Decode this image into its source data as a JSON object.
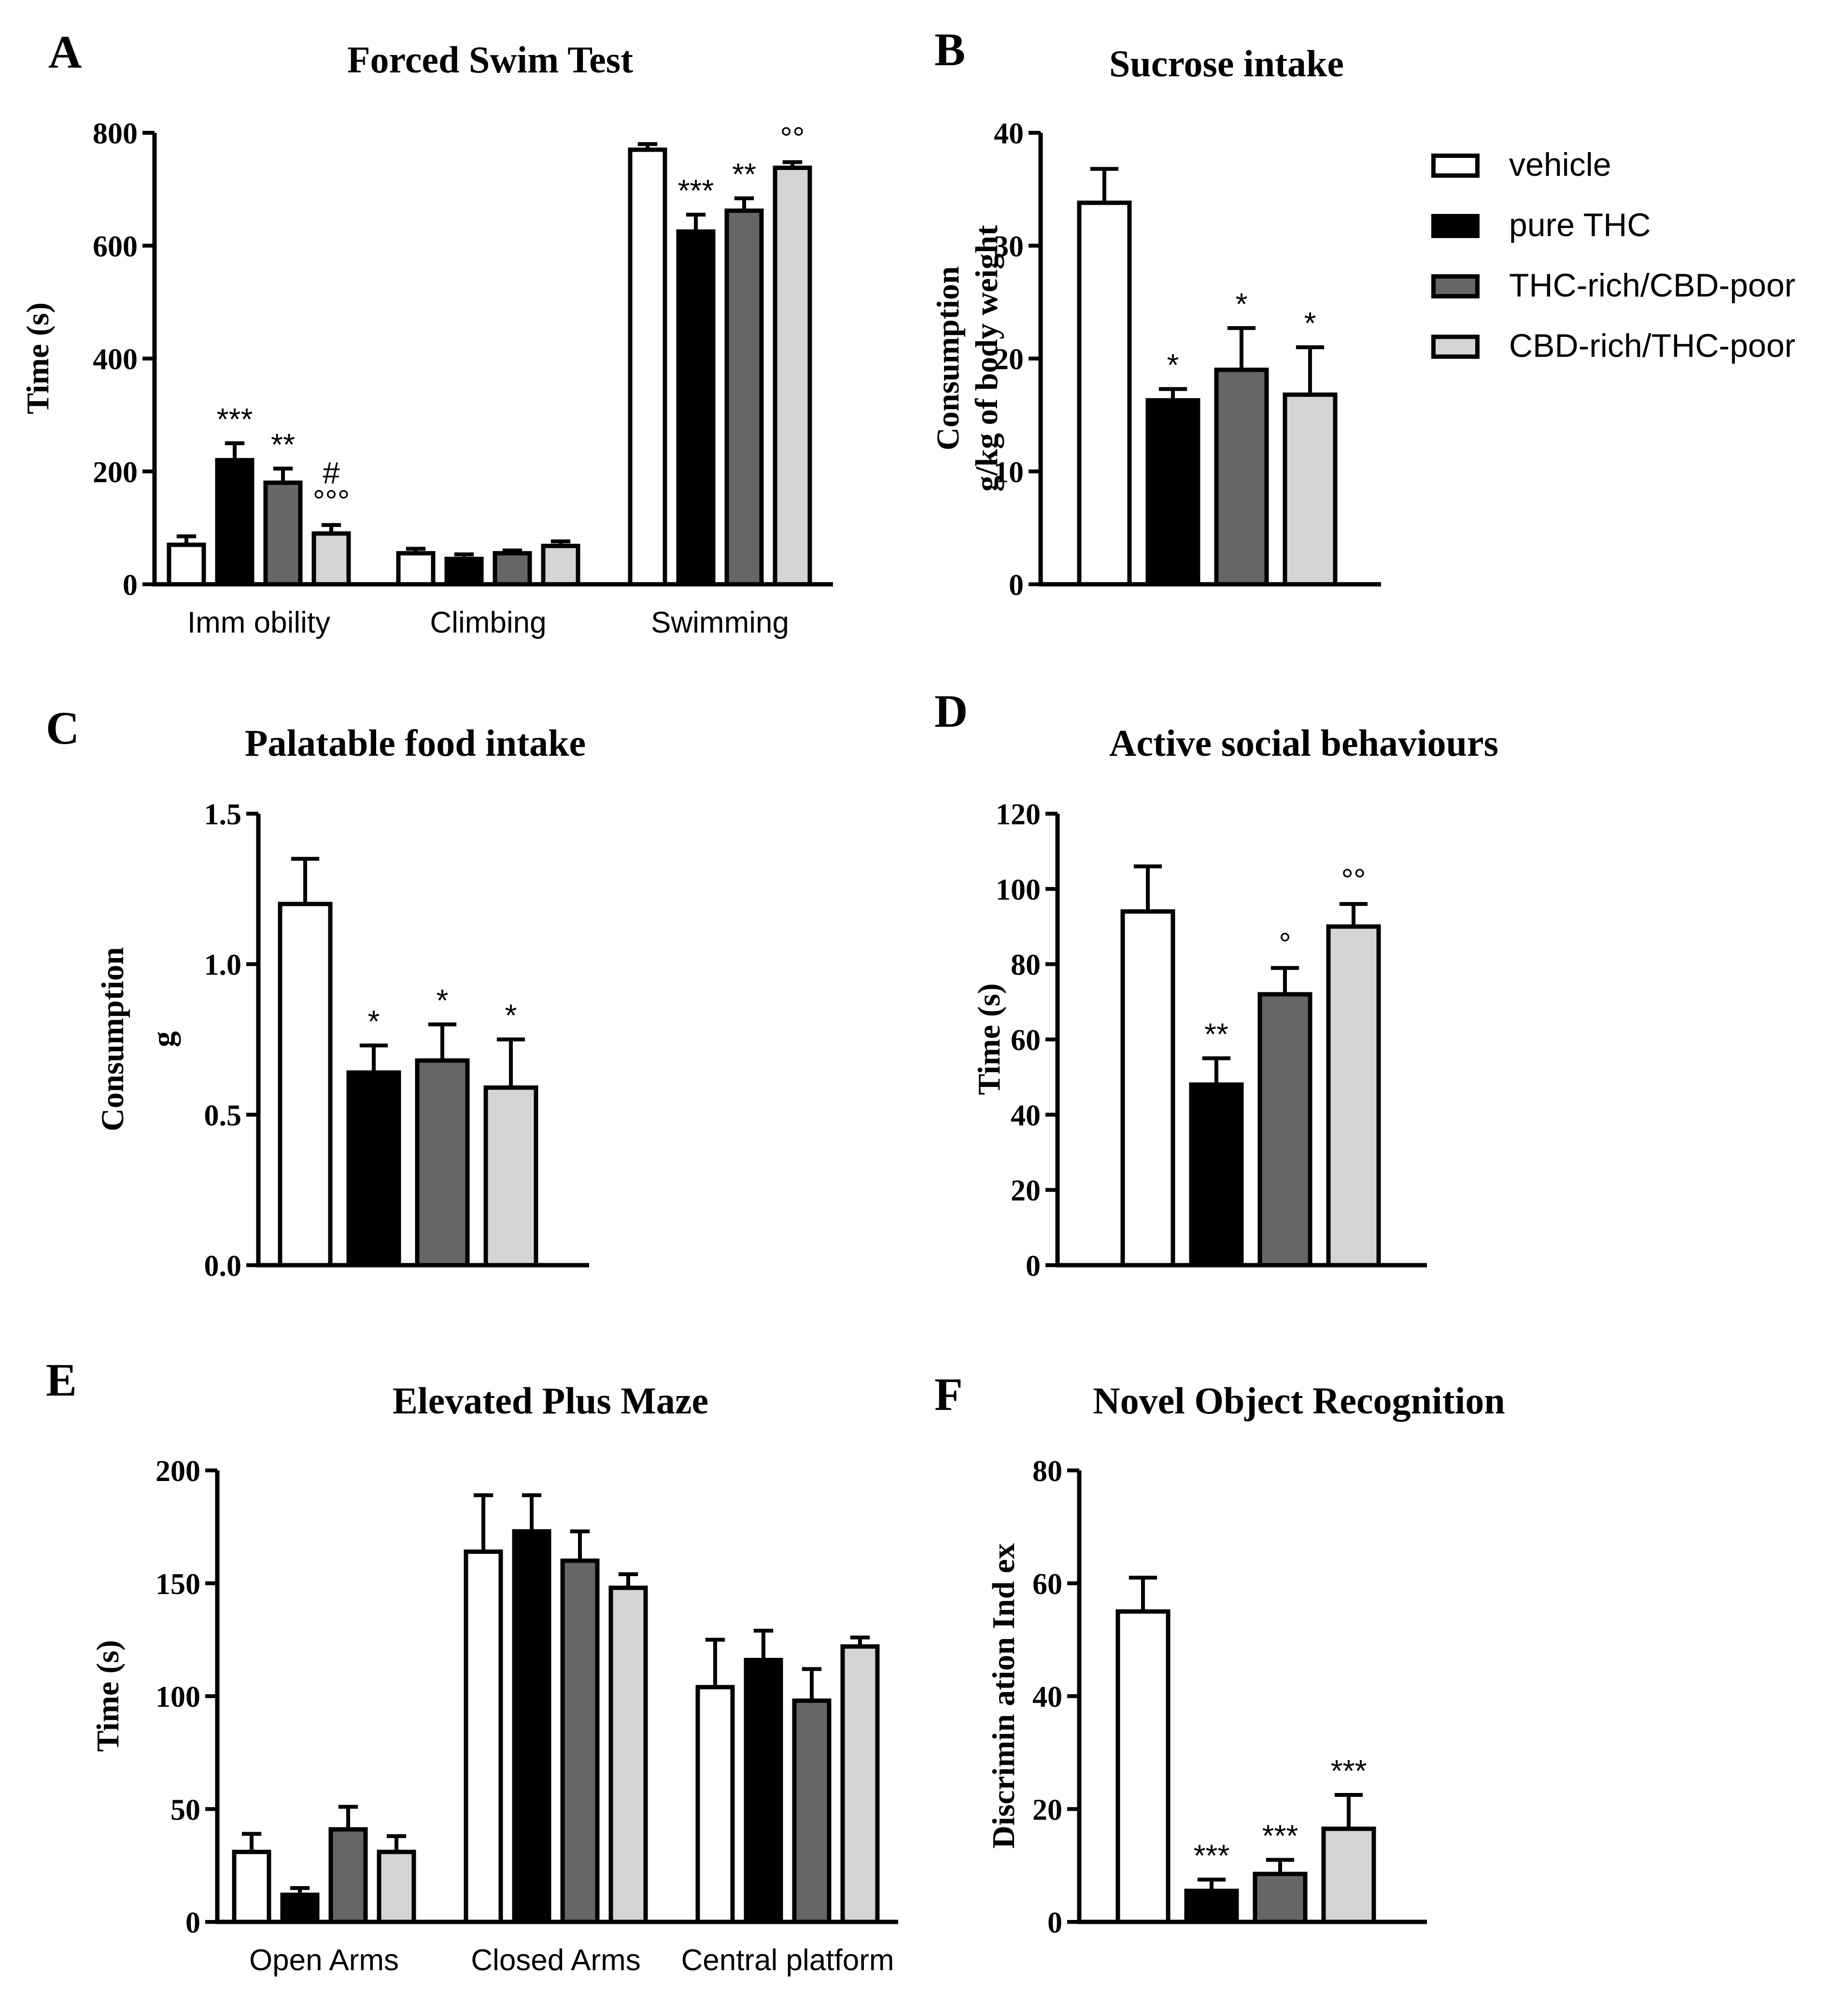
{
  "legend": {
    "items": [
      {
        "label": "vehicle",
        "color": "#ffffff"
      },
      {
        "label": "pure THC",
        "color": "#000000"
      },
      {
        "label": "THC-rich/CBD-poor",
        "color": "#666666"
      },
      {
        "label": "CBD-rich/THC-poor",
        "color": "#d4d4d4"
      }
    ]
  },
  "chart_data": [
    {
      "panel": "A",
      "type": "bar",
      "title": "Forced Swim Test",
      "ylabel": "Time (s)",
      "ylim": [
        0,
        800
      ],
      "yticks": [
        "0",
        "200",
        "400",
        "600",
        "800"
      ],
      "categories": [
        "Imm obility",
        "Climbing",
        "Swimming"
      ],
      "series": [
        {
          "name": "vehicle",
          "values": [
            70,
            55,
            770
          ],
          "err": [
            15,
            8,
            10
          ]
        },
        {
          "name": "pure THC",
          "values": [
            220,
            45,
            625
          ],
          "err": [
            30,
            8,
            30
          ]
        },
        {
          "name": "THC-rich/CBD-poor",
          "values": [
            180,
            55,
            662
          ],
          "err": [
            25,
            5,
            22
          ]
        },
        {
          "name": "CBD-rich/THC-poor",
          "values": [
            90,
            68,
            738
          ],
          "err": [
            15,
            8,
            10
          ]
        }
      ],
      "annotations": [
        {
          "cat": 0,
          "series": 1,
          "text": "***"
        },
        {
          "cat": 0,
          "series": 2,
          "text": "**"
        },
        {
          "cat": 0,
          "series": 3,
          "text": "#",
          "line": 2
        },
        {
          "cat": 0,
          "series": 3,
          "text": "°°°",
          "line": 1
        },
        {
          "cat": 2,
          "series": 1,
          "text": "***"
        },
        {
          "cat": 2,
          "series": 2,
          "text": "**"
        },
        {
          "cat": 2,
          "series": 3,
          "text": "°°"
        }
      ]
    },
    {
      "panel": "B",
      "type": "bar",
      "title": "Sucrose intake",
      "ylabel": "Consumption",
      "ylabel2": "g/kg of body weight",
      "ylim": [
        0,
        40
      ],
      "yticks": [
        "0",
        "10",
        "20",
        "30",
        "40"
      ],
      "categories": [
        ""
      ],
      "series": [
        {
          "name": "vehicle",
          "values": [
            33.8
          ],
          "err": [
            3
          ]
        },
        {
          "name": "pure THC",
          "values": [
            16.3
          ],
          "err": [
            1
          ]
        },
        {
          "name": "THC-rich/CBD-poor",
          "values": [
            19
          ],
          "err": [
            3.7
          ]
        },
        {
          "name": "CBD-rich/THC-poor",
          "values": [
            16.8
          ],
          "err": [
            4.2
          ]
        }
      ],
      "annotations": [
        {
          "cat": 0,
          "series": 1,
          "text": "*"
        },
        {
          "cat": 0,
          "series": 2,
          "text": "*"
        },
        {
          "cat": 0,
          "series": 3,
          "text": "*"
        }
      ]
    },
    {
      "panel": "C",
      "type": "bar",
      "title": "Palatable food intake",
      "ylabel": "Consumption",
      "ylabel2": "g",
      "ylim": [
        0,
        1.5
      ],
      "yticks": [
        "0.0",
        "0.5",
        "1.0",
        "1.5"
      ],
      "categories": [
        ""
      ],
      "series": [
        {
          "name": "vehicle",
          "values": [
            1.2
          ],
          "err": [
            0.15
          ]
        },
        {
          "name": "pure THC",
          "values": [
            0.64
          ],
          "err": [
            0.09
          ]
        },
        {
          "name": "THC-rich/CBD-poor",
          "values": [
            0.68
          ],
          "err": [
            0.12
          ]
        },
        {
          "name": "CBD-rich/THC-poor",
          "values": [
            0.59
          ],
          "err": [
            0.16
          ]
        }
      ],
      "annotations": [
        {
          "cat": 0,
          "series": 1,
          "text": "*"
        },
        {
          "cat": 0,
          "series": 2,
          "text": "*"
        },
        {
          "cat": 0,
          "series": 3,
          "text": "*"
        }
      ]
    },
    {
      "panel": "D",
      "type": "bar",
      "title": "Active social behaviours",
      "ylabel": "Time (s)",
      "ylim": [
        0,
        120
      ],
      "yticks": [
        "0",
        "20",
        "40",
        "60",
        "80",
        "100",
        "120"
      ],
      "categories": [
        ""
      ],
      "series": [
        {
          "name": "vehicle",
          "values": [
            94
          ],
          "err": [
            12
          ]
        },
        {
          "name": "pure THC",
          "values": [
            48
          ],
          "err": [
            7
          ]
        },
        {
          "name": "THC-rich/CBD-poor",
          "values": [
            72
          ],
          "err": [
            7
          ]
        },
        {
          "name": "CBD-rich/THC-poor",
          "values": [
            90
          ],
          "err": [
            6
          ]
        }
      ],
      "annotations": [
        {
          "cat": 0,
          "series": 1,
          "text": "**"
        },
        {
          "cat": 0,
          "series": 2,
          "text": "°"
        },
        {
          "cat": 0,
          "series": 3,
          "text": "°°"
        }
      ]
    },
    {
      "panel": "E",
      "type": "bar",
      "title": "Elevated Plus Maze",
      "ylabel": "Time (s)",
      "ylim": [
        0,
        200
      ],
      "yticks": [
        "0",
        "50",
        "100",
        "150",
        "200"
      ],
      "categories": [
        "Open Arms",
        "Closed Arms",
        "Central platform"
      ],
      "series": [
        {
          "name": "vehicle",
          "values": [
            31,
            164,
            104
          ],
          "err": [
            8,
            25,
            21
          ]
        },
        {
          "name": "pure THC",
          "values": [
            12,
            173,
            116
          ],
          "err": [
            3,
            16,
            13
          ]
        },
        {
          "name": "THC-rich/CBD-poor",
          "values": [
            41,
            160,
            98
          ],
          "err": [
            10,
            13,
            14
          ]
        },
        {
          "name": "CBD-rich/THC-poor",
          "values": [
            31,
            148,
            122
          ],
          "err": [
            7,
            6,
            4
          ]
        }
      ],
      "annotations": []
    },
    {
      "panel": "F",
      "type": "bar",
      "title": "Novel Object Recognition",
      "ylabel": "Discrimin ation Ind ex",
      "ylim": [
        0,
        80
      ],
      "yticks": [
        "0",
        "20",
        "40",
        "60",
        "80"
      ],
      "categories": [
        ""
      ],
      "series": [
        {
          "name": "vehicle",
          "values": [
            55
          ],
          "err": [
            6
          ]
        },
        {
          "name": "pure THC",
          "values": [
            5.5
          ],
          "err": [
            2
          ]
        },
        {
          "name": "THC-rich/CBD-poor",
          "values": [
            8.5
          ],
          "err": [
            2.5
          ]
        },
        {
          "name": "CBD-rich/THC-poor",
          "values": [
            16.5
          ],
          "err": [
            6
          ]
        }
      ],
      "annotations": [
        {
          "cat": 0,
          "series": 1,
          "text": "***"
        },
        {
          "cat": 0,
          "series": 2,
          "text": "***"
        },
        {
          "cat": 0,
          "series": 3,
          "text": "***"
        }
      ]
    }
  ]
}
